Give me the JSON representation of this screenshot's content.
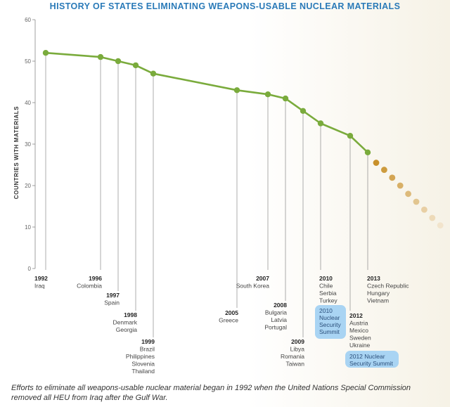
{
  "title": "HISTORY OF STATES ELIMINATING WEAPONS-USABLE NUCLEAR MATERIALS",
  "caption_line1": "Efforts to eliminate all weapons-usable nuclear material began in 1992 when the United Nations Special Commission",
  "caption_line2": "removed all HEU from Iraq after the Gulf War.",
  "colors": {
    "line": "#7aab3c",
    "projection_dark": "#c8902a",
    "projection_light": "#f2e4cc",
    "title": "#2a7ab8",
    "summit_box": "#a9d4f3"
  },
  "chart_data": {
    "type": "line",
    "title": "HISTORY OF STATES ELIMINATING WEAPONS-USABLE NUCLEAR MATERIALS",
    "ylabel": "COUNTRIES WITH MATERIALS",
    "xlabel": "",
    "ylim": [
      0,
      60
    ],
    "y_ticks": [
      0,
      10,
      20,
      30,
      40,
      50,
      60
    ],
    "grid": false,
    "series": [
      {
        "values": [
          52,
          51,
          50,
          49,
          47,
          43,
          42,
          41,
          38,
          35,
          32,
          28
        ]
      }
    ],
    "projection": [
      25.5,
      23.8,
      21.9,
      20.0,
      18.0,
      16.1,
      14.2,
      12.2,
      10.4
    ],
    "events": [
      {
        "year": "1992",
        "countries": [
          "Iraq"
        ],
        "value": 52
      },
      {
        "year": "1996",
        "countries": [
          "Colombia"
        ],
        "value": 51
      },
      {
        "year": "1997",
        "countries": [
          "Spain"
        ],
        "value": 50
      },
      {
        "year": "1998",
        "countries": [
          "Denmark",
          "Georgia"
        ],
        "value": 49
      },
      {
        "year": "1999",
        "countries": [
          "Brazil",
          "Philippines",
          "Slovenia",
          "Thailand"
        ],
        "value": 47
      },
      {
        "year": "2005",
        "countries": [
          "Greece"
        ],
        "value": 43
      },
      {
        "year": "2007",
        "countries": [
          "South Korea"
        ],
        "value": 42
      },
      {
        "year": "2008",
        "countries": [
          "Bulgaria",
          "Latvia",
          "Portugal"
        ],
        "value": 41
      },
      {
        "year": "2009",
        "countries": [
          "Libya",
          "Romania",
          "Taiwan"
        ],
        "value": 38
      },
      {
        "year": "2010",
        "countries": [
          "Chile",
          "Serbia",
          "Turkey"
        ],
        "value": 35
      },
      {
        "year": "2012",
        "countries": [
          "Austria",
          "Mexico",
          "Sweden",
          "Ukraine"
        ],
        "value": 32
      },
      {
        "year": "2013",
        "countries": [
          "Czech Republic",
          "Hungary",
          "Vietnam"
        ],
        "value": 28
      }
    ],
    "summits": [
      {
        "lines": [
          "2010",
          "Nuclear",
          "Security",
          "Summit"
        ]
      },
      {
        "lines": [
          "2012 Nuclear",
          "Security Summit"
        ]
      }
    ]
  }
}
